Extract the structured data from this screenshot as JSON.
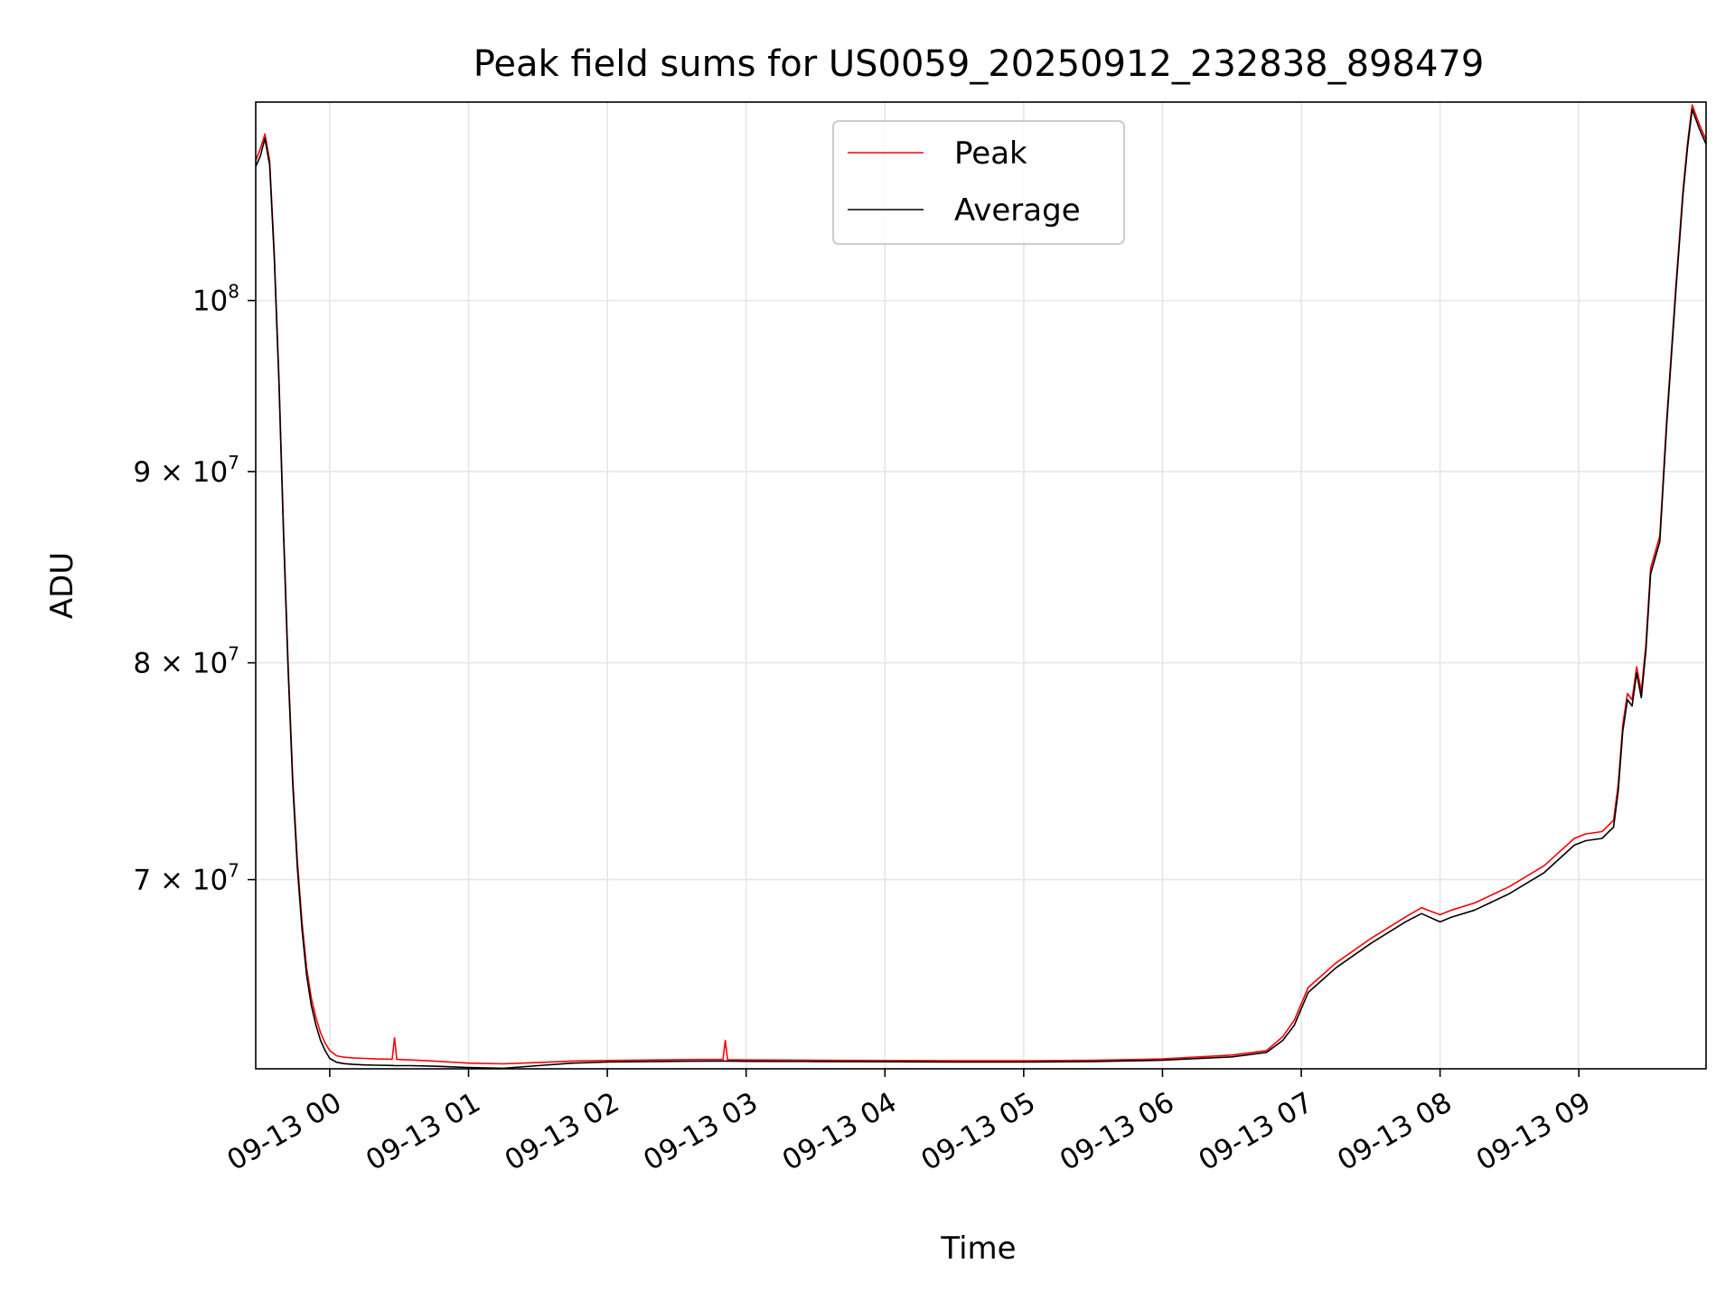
{
  "chart_data": {
    "type": "line",
    "title": "Peak field sums for US0059_20250912_232838_898479",
    "xlabel": "Time",
    "ylabel": "ADU",
    "y_scale": "log",
    "grid": true,
    "legend_position": "upper-center",
    "xlim": [
      "2025-09-12 23:28",
      "2025-09-13 09:55"
    ],
    "ylim": [
      62300000,
      113000000
    ],
    "x_ticks": [
      {
        "value": "2025-09-13 00:00",
        "label": "09-13 00"
      },
      {
        "value": "2025-09-13 01:00",
        "label": "09-13 01"
      },
      {
        "value": "2025-09-13 02:00",
        "label": "09-13 02"
      },
      {
        "value": "2025-09-13 03:00",
        "label": "09-13 03"
      },
      {
        "value": "2025-09-13 04:00",
        "label": "09-13 04"
      },
      {
        "value": "2025-09-13 05:00",
        "label": "09-13 05"
      },
      {
        "value": "2025-09-13 06:00",
        "label": "09-13 06"
      },
      {
        "value": "2025-09-13 07:00",
        "label": "09-13 07"
      },
      {
        "value": "2025-09-13 08:00",
        "label": "09-13 08"
      },
      {
        "value": "2025-09-13 09:00",
        "label": "09-13 09"
      }
    ],
    "y_ticks": [
      {
        "value": 100000000,
        "base": "10",
        "exp": "8"
      },
      {
        "value": 90000000,
        "base": "9 × 10",
        "exp": "7"
      },
      {
        "value": 80000000,
        "base": "8 × 10",
        "exp": "7"
      },
      {
        "value": 70000000,
        "base": "7 × 10",
        "exp": "7"
      }
    ],
    "series": [
      {
        "name": "Peak",
        "color": "#ff0000",
        "x": [
          "2025-09-12 23:28",
          "2025-09-12 23:30",
          "2025-09-12 23:32",
          "2025-09-12 23:34",
          "2025-09-12 23:36",
          "2025-09-12 23:38",
          "2025-09-12 23:40",
          "2025-09-12 23:42",
          "2025-09-12 23:44",
          "2025-09-12 23:46",
          "2025-09-12 23:48",
          "2025-09-12 23:50",
          "2025-09-12 23:52",
          "2025-09-12 23:54",
          "2025-09-12 23:56",
          "2025-09-12 23:58",
          "2025-09-13 00:00",
          "2025-09-13 00:03",
          "2025-09-13 00:06",
          "2025-09-13 00:10",
          "2025-09-13 00:15",
          "2025-09-13 00:20",
          "2025-09-13 00:27",
          "2025-09-13 00:28",
          "2025-09-13 00:29",
          "2025-09-13 00:35",
          "2025-09-13 00:45",
          "2025-09-13 01:00",
          "2025-09-13 01:15",
          "2025-09-13 01:30",
          "2025-09-13 01:45",
          "2025-09-13 02:00",
          "2025-09-13 02:30",
          "2025-09-13 02:50",
          "2025-09-13 02:51",
          "2025-09-13 02:52",
          "2025-09-13 03:00",
          "2025-09-13 03:30",
          "2025-09-13 04:00",
          "2025-09-13 04:30",
          "2025-09-13 05:00",
          "2025-09-13 05:30",
          "2025-09-13 06:00",
          "2025-09-13 06:30",
          "2025-09-13 06:45",
          "2025-09-13 06:52",
          "2025-09-13 06:57",
          "2025-09-13 07:03",
          "2025-09-13 07:15",
          "2025-09-13 07:30",
          "2025-09-13 07:45",
          "2025-09-13 07:52",
          "2025-09-13 08:00",
          "2025-09-13 08:05",
          "2025-09-13 08:15",
          "2025-09-13 08:30",
          "2025-09-13 08:45",
          "2025-09-13 08:58",
          "2025-09-13 09:03",
          "2025-09-13 09:10",
          "2025-09-13 09:15",
          "2025-09-13 09:17",
          "2025-09-13 09:19",
          "2025-09-13 09:21",
          "2025-09-13 09:23",
          "2025-09-13 09:25",
          "2025-09-13 09:27",
          "2025-09-13 09:29",
          "2025-09-13 09:31",
          "2025-09-13 09:35",
          "2025-09-13 09:38",
          "2025-09-13 09:42",
          "2025-09-13 09:45",
          "2025-09-13 09:47",
          "2025-09-13 09:49",
          "2025-09-13 09:52",
          "2025-09-13 09:55"
        ],
        "y": [
          109000000,
          109800000,
          110800000,
          109000000,
          103000000,
          95500000,
          87000000,
          80000000,
          74500000,
          70800000,
          68200000,
          66300000,
          65100000,
          64300000,
          63700000,
          63300000,
          63000000,
          62800000,
          62750000,
          62720000,
          62700000,
          62680000,
          62670000,
          63500000,
          62660000,
          62640000,
          62600000,
          62520000,
          62490000,
          62540000,
          62600000,
          62620000,
          62650000,
          62660000,
          63400000,
          62650000,
          62640000,
          62630000,
          62620000,
          62610000,
          62610000,
          62630000,
          62680000,
          62830000,
          63000000,
          63550000,
          64200000,
          65500000,
          66500000,
          67500000,
          68400000,
          68800000,
          68500000,
          68700000,
          69000000,
          69700000,
          70600000,
          71800000,
          72000000,
          72100000,
          72600000,
          74200000,
          77000000,
          78500000,
          78200000,
          79800000,
          78600000,
          80900000,
          84800000,
          86500000,
          93000000,
          101000000,
          107000000,
          110200000,
          112800000,
          111500000,
          110400000
        ]
      },
      {
        "name": "Average",
        "color": "#000000",
        "x": [
          "2025-09-12 23:28",
          "2025-09-12 23:30",
          "2025-09-12 23:32",
          "2025-09-12 23:34",
          "2025-09-12 23:36",
          "2025-09-12 23:38",
          "2025-09-12 23:40",
          "2025-09-12 23:42",
          "2025-09-12 23:44",
          "2025-09-12 23:46",
          "2025-09-12 23:48",
          "2025-09-12 23:50",
          "2025-09-12 23:52",
          "2025-09-12 23:54",
          "2025-09-12 23:56",
          "2025-09-12 23:58",
          "2025-09-13 00:00",
          "2025-09-13 00:03",
          "2025-09-13 00:06",
          "2025-09-13 00:10",
          "2025-09-13 00:15",
          "2025-09-13 00:20",
          "2025-09-13 00:27",
          "2025-09-13 00:28",
          "2025-09-13 00:29",
          "2025-09-13 00:35",
          "2025-09-13 00:45",
          "2025-09-13 01:00",
          "2025-09-13 01:15",
          "2025-09-13 01:30",
          "2025-09-13 01:45",
          "2025-09-13 02:00",
          "2025-09-13 02:30",
          "2025-09-13 02:50",
          "2025-09-13 02:51",
          "2025-09-13 02:52",
          "2025-09-13 03:00",
          "2025-09-13 03:30",
          "2025-09-13 04:00",
          "2025-09-13 04:30",
          "2025-09-13 05:00",
          "2025-09-13 05:30",
          "2025-09-13 06:00",
          "2025-09-13 06:30",
          "2025-09-13 06:45",
          "2025-09-13 06:52",
          "2025-09-13 06:57",
          "2025-09-13 07:03",
          "2025-09-13 07:15",
          "2025-09-13 07:30",
          "2025-09-13 07:45",
          "2025-09-13 07:52",
          "2025-09-13 08:00",
          "2025-09-13 08:05",
          "2025-09-13 08:15",
          "2025-09-13 08:30",
          "2025-09-13 08:45",
          "2025-09-13 08:58",
          "2025-09-13 09:03",
          "2025-09-13 09:10",
          "2025-09-13 09:15",
          "2025-09-13 09:17",
          "2025-09-13 09:19",
          "2025-09-13 09:21",
          "2025-09-13 09:23",
          "2025-09-13 09:25",
          "2025-09-13 09:27",
          "2025-09-13 09:29",
          "2025-09-13 09:31",
          "2025-09-13 09:35",
          "2025-09-13 09:38",
          "2025-09-13 09:42",
          "2025-09-13 09:45",
          "2025-09-13 09:47",
          "2025-09-13 09:49",
          "2025-09-13 09:52",
          "2025-09-13 09:55"
        ],
        "y": [
          108600000,
          109300000,
          110500000,
          108700000,
          102700000,
          95200000,
          86700000,
          79700000,
          74200000,
          70500000,
          67900000,
          66000000,
          64800000,
          64000000,
          63400000,
          63000000,
          62700000,
          62550000,
          62500000,
          62470000,
          62450000,
          62440000,
          62430000,
          62420000,
          62420000,
          62420000,
          62400000,
          62350000,
          62320000,
          62420000,
          62520000,
          62560000,
          62590000,
          62600000,
          62600000,
          62600000,
          62590000,
          62580000,
          62570000,
          62560000,
          62560000,
          62580000,
          62630000,
          62760000,
          62930000,
          63400000,
          64000000,
          65300000,
          66300000,
          67300000,
          68200000,
          68550000,
          68200000,
          68400000,
          68700000,
          69400000,
          70300000,
          71500000,
          71700000,
          71800000,
          72300000,
          73900000,
          76700000,
          78200000,
          77900000,
          79500000,
          78300000,
          80600000,
          84500000,
          86200000,
          92700000,
          100700000,
          106700000,
          109900000,
          112500000,
          111200000,
          110100000
        ]
      }
    ]
  }
}
